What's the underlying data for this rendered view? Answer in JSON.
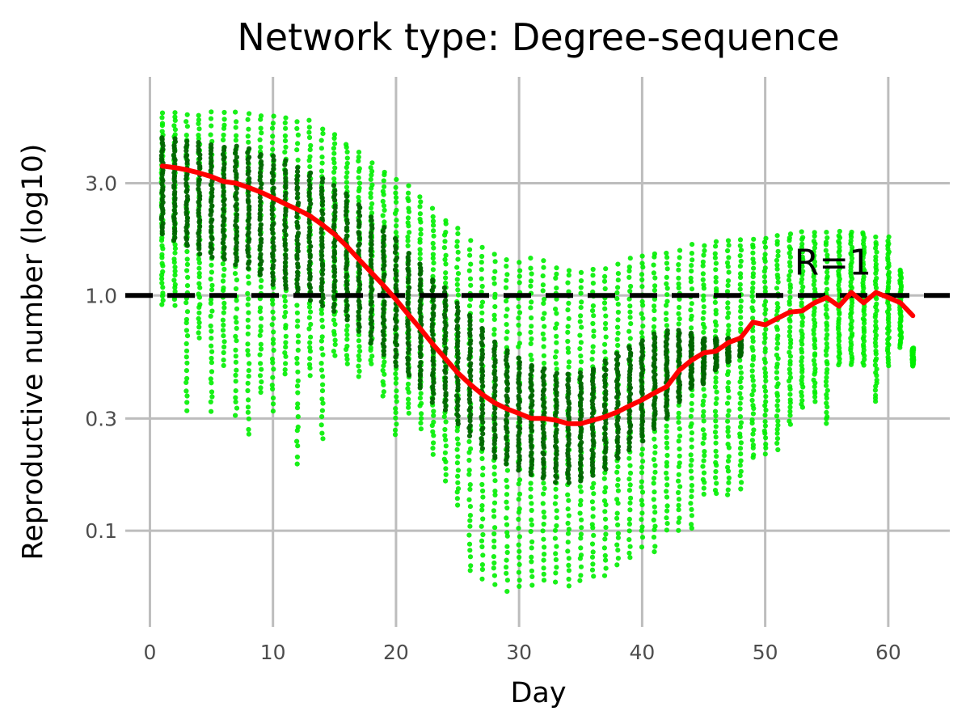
{
  "chart_data": {
    "type": "scatter",
    "title": "Network type: Degree-sequence",
    "xlabel": "Day",
    "ylabel": "Reproductive number (log10)",
    "xlim": [
      -2,
      65
    ],
    "ylim": [
      0.039,
      8.5
    ],
    "y_scale": "log10",
    "grid": true,
    "x_ticks": [
      0,
      10,
      20,
      30,
      40,
      50,
      60
    ],
    "y_ticks": [
      0.1,
      0.3,
      1.0,
      3.0
    ],
    "y_tick_labels": [
      "0.1",
      "0.3",
      "1.0",
      "3.0"
    ],
    "reference_line": {
      "y": 1.0,
      "style": "dashed",
      "color": "#000000"
    },
    "annotation": {
      "text": "R=1",
      "x": 55.5,
      "y": 1.38
    },
    "colors": {
      "light_points": "#00ee00",
      "dark_points": "#006400",
      "trend_line": "#ff0000"
    },
    "series": [
      {
        "kind": "points-light",
        "band": [
          [
            1,
            0.9,
            6.1
          ],
          [
            2,
            0.9,
            6.2
          ],
          [
            3,
            0.32,
            6.2
          ],
          [
            4,
            0.65,
            6.1
          ],
          [
            5,
            0.32,
            6.2
          ],
          [
            6,
            0.5,
            6.2
          ],
          [
            7,
            0.3,
            6.2
          ],
          [
            8,
            0.25,
            6.2
          ],
          [
            9,
            0.38,
            6.1
          ],
          [
            10,
            0.32,
            6.0
          ],
          [
            11,
            0.45,
            5.9
          ],
          [
            12,
            0.19,
            5.8
          ],
          [
            13,
            0.45,
            5.7
          ],
          [
            14,
            0.24,
            5.4
          ],
          [
            15,
            0.55,
            5.0
          ],
          [
            16,
            0.5,
            4.6
          ],
          [
            17,
            0.45,
            4.2
          ],
          [
            18,
            0.5,
            3.8
          ],
          [
            19,
            0.37,
            3.5
          ],
          [
            20,
            0.25,
            3.2
          ],
          [
            21,
            0.31,
            3.0
          ],
          [
            22,
            0.27,
            2.7
          ],
          [
            23,
            0.21,
            2.4
          ],
          [
            24,
            0.16,
            2.2
          ],
          [
            25,
            0.125,
            2.0
          ],
          [
            26,
            0.065,
            1.8
          ],
          [
            27,
            0.062,
            1.65
          ],
          [
            28,
            0.058,
            1.55
          ],
          [
            29,
            0.055,
            1.5
          ],
          [
            30,
            0.057,
            1.45
          ],
          [
            31,
            0.058,
            1.5
          ],
          [
            32,
            0.06,
            1.45
          ],
          [
            33,
            0.06,
            1.4
          ],
          [
            34,
            0.058,
            1.35
          ],
          [
            35,
            0.06,
            1.3
          ],
          [
            36,
            0.062,
            1.35
          ],
          [
            37,
            0.064,
            1.35
          ],
          [
            38,
            0.07,
            1.4
          ],
          [
            39,
            0.075,
            1.5
          ],
          [
            40,
            0.085,
            1.55
          ],
          [
            41,
            0.08,
            1.6
          ],
          [
            42,
            0.1,
            1.6
          ],
          [
            43,
            0.1,
            1.6
          ],
          [
            44,
            0.1,
            1.7
          ],
          [
            45,
            0.14,
            1.7
          ],
          [
            46,
            0.14,
            1.75
          ],
          [
            47,
            0.14,
            1.8
          ],
          [
            48,
            0.15,
            1.8
          ],
          [
            49,
            0.2,
            1.8
          ],
          [
            50,
            0.21,
            1.8
          ],
          [
            51,
            0.22,
            1.85
          ],
          [
            52,
            0.28,
            1.9
          ],
          [
            53,
            0.33,
            1.9
          ],
          [
            54,
            0.35,
            1.9
          ],
          [
            55,
            0.28,
            1.9
          ],
          [
            56,
            0.5,
            1.9
          ],
          [
            57,
            0.5,
            1.9
          ],
          [
            58,
            0.5,
            1.9
          ],
          [
            59,
            0.35,
            1.8
          ],
          [
            60,
            0.5,
            1.8
          ],
          [
            61,
            0.6,
            1.3
          ],
          [
            62,
            0.5,
            0.6
          ]
        ]
      },
      {
        "kind": "points-dark",
        "band": [
          [
            1,
            1.8,
            4.8
          ],
          [
            2,
            1.7,
            4.7
          ],
          [
            3,
            1.6,
            4.6
          ],
          [
            4,
            1.5,
            4.6
          ],
          [
            5,
            1.45,
            4.5
          ],
          [
            6,
            1.4,
            4.4
          ],
          [
            7,
            1.35,
            4.4
          ],
          [
            8,
            1.3,
            4.3
          ],
          [
            9,
            1.2,
            4.1
          ],
          [
            10,
            1.1,
            4.0
          ],
          [
            11,
            1.05,
            3.8
          ],
          [
            12,
            1.0,
            3.6
          ],
          [
            13,
            0.95,
            3.4
          ],
          [
            14,
            0.9,
            3.2
          ],
          [
            15,
            0.85,
            3.0
          ],
          [
            16,
            0.78,
            2.8
          ],
          [
            17,
            0.7,
            2.5
          ],
          [
            18,
            0.62,
            2.2
          ],
          [
            19,
            0.55,
            2.0
          ],
          [
            20,
            0.5,
            1.8
          ],
          [
            21,
            0.45,
            1.55
          ],
          [
            22,
            0.4,
            1.4
          ],
          [
            23,
            0.35,
            1.2
          ],
          [
            24,
            0.32,
            1.1
          ],
          [
            25,
            0.28,
            0.95
          ],
          [
            26,
            0.25,
            0.85
          ],
          [
            27,
            0.22,
            0.75
          ],
          [
            28,
            0.2,
            0.65
          ],
          [
            29,
            0.19,
            0.6
          ],
          [
            30,
            0.18,
            0.55
          ],
          [
            31,
            0.17,
            0.52
          ],
          [
            32,
            0.165,
            0.5
          ],
          [
            33,
            0.16,
            0.48
          ],
          [
            34,
            0.16,
            0.47
          ],
          [
            35,
            0.16,
            0.48
          ],
          [
            36,
            0.17,
            0.5
          ],
          [
            37,
            0.18,
            0.54
          ],
          [
            38,
            0.2,
            0.58
          ],
          [
            39,
            0.22,
            0.62
          ],
          [
            40,
            0.24,
            0.66
          ],
          [
            41,
            0.27,
            0.7
          ],
          [
            42,
            0.3,
            0.72
          ],
          [
            43,
            0.35,
            0.72
          ],
          [
            44,
            0.4,
            0.7
          ],
          [
            45,
            0.42,
            0.66
          ],
          [
            46,
            0.48,
            0.66
          ],
          [
            47,
            0.52,
            0.66
          ],
          [
            48,
            0.55,
            0.66
          ]
        ]
      },
      {
        "kind": "trend-line",
        "x": [
          1,
          2,
          3,
          4,
          5,
          6,
          7,
          8,
          9,
          10,
          11,
          12,
          13,
          14,
          15,
          16,
          17,
          18,
          19,
          20,
          21,
          22,
          23,
          24,
          25,
          26,
          27,
          28,
          29,
          30,
          31,
          32,
          33,
          34,
          35,
          36,
          37,
          38,
          39,
          40,
          41,
          42,
          43,
          44,
          45,
          46,
          47,
          48,
          49,
          50,
          51,
          52,
          53,
          54,
          55,
          56,
          57,
          58,
          59,
          60,
          61,
          62
        ],
        "y": [
          3.55,
          3.5,
          3.42,
          3.32,
          3.2,
          3.05,
          3.0,
          2.88,
          2.75,
          2.6,
          2.45,
          2.32,
          2.18,
          2.0,
          1.82,
          1.62,
          1.42,
          1.25,
          1.1,
          0.96,
          0.83,
          0.72,
          0.62,
          0.54,
          0.47,
          0.42,
          0.38,
          0.35,
          0.33,
          0.315,
          0.3,
          0.3,
          0.295,
          0.285,
          0.285,
          0.295,
          0.305,
          0.32,
          0.34,
          0.36,
          0.385,
          0.41,
          0.48,
          0.53,
          0.57,
          0.58,
          0.63,
          0.66,
          0.77,
          0.75,
          0.8,
          0.85,
          0.86,
          0.93,
          0.98,
          0.9,
          1.03,
          0.93,
          1.03,
          0.98,
          0.93,
          0.82
        ]
      }
    ]
  }
}
